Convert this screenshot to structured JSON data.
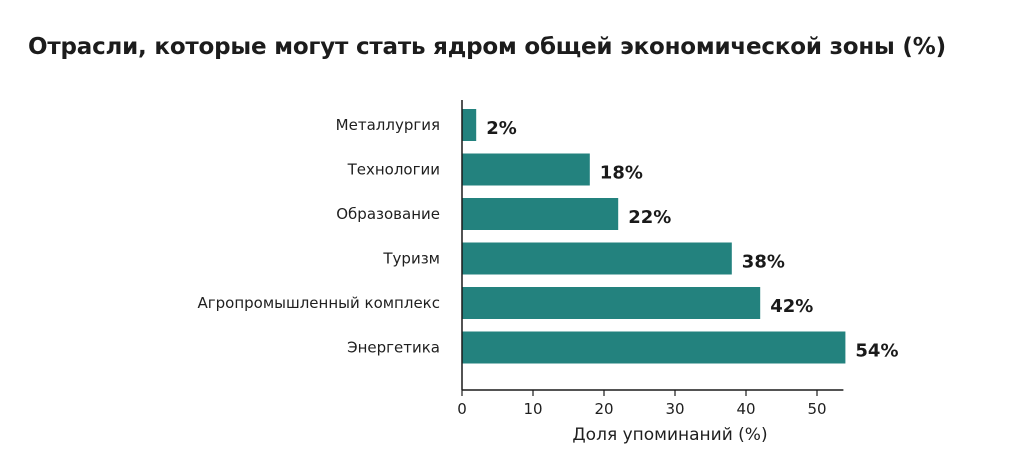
{
  "chart_data": {
    "type": "bar",
    "orientation": "horizontal",
    "title": "Отрасли, которые могут стать ядром общей экономической зоны (%)",
    "xlabel": "Доля упоминаний (%)",
    "ylabel": "",
    "categories": [
      "Металлургия",
      "Технологии",
      "Образование",
      "Туризм",
      "Агропромышленный комплекс",
      "Энергетика"
    ],
    "values": [
      2,
      18,
      22,
      38,
      42,
      54
    ],
    "value_labels": [
      "2%",
      "18%",
      "22%",
      "38%",
      "42%",
      "54%"
    ],
    "xlim": [
      0,
      54
    ],
    "xticks": [
      0,
      10,
      20,
      30,
      40,
      50
    ],
    "grid": false,
    "legend": "none",
    "bar_color": "#23827e"
  }
}
